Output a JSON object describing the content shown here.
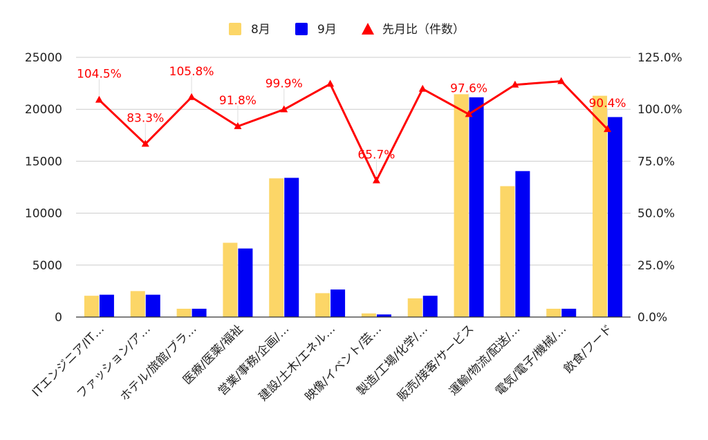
{
  "colors": {
    "aug": "#FCD667",
    "sep": "#0000F5",
    "ratio": "#FF0000",
    "grid": "#CCCCCC",
    "axis": "#333333",
    "text": "#222222"
  },
  "chart_data": {
    "type": "bar",
    "categories": [
      "ITエンジニア/IT…",
      "ファッション/ア…",
      "ホテル/旅館/ブラ…",
      "医療/医薬/福祉",
      "営業/事務/企画/…",
      "建設/土木/エネル…",
      "映像/イベント/芸…",
      "製造/工場/化学/…",
      "販売/接客/サービス",
      "運輸/物流/配送/…",
      "電気/電子/機械/…",
      "飲食/フード"
    ],
    "series": [
      {
        "name": "8月",
        "axis": "left",
        "kind": "bar",
        "color": "#FCD667",
        "values": [
          2050,
          2500,
          800,
          7150,
          13350,
          2300,
          350,
          1800,
          21450,
          12600,
          800,
          21300
        ]
      },
      {
        "name": "9月",
        "axis": "left",
        "kind": "bar",
        "color": "#0000F5",
        "values": [
          2150,
          2150,
          800,
          6600,
          13400,
          2650,
          250,
          2050,
          21150,
          14050,
          800,
          19250
        ]
      },
      {
        "name": "先月比（件数）",
        "axis": "right",
        "kind": "line",
        "marker": "triangle",
        "color": "#FF0000",
        "values": [
          104.5,
          83.3,
          105.8,
          91.8,
          99.9,
          112.2,
          65.7,
          109.8,
          97.6,
          111.8,
          113.5,
          90.4
        ]
      }
    ],
    "point_labels": [
      "104.5%",
      "83.3%",
      "105.8%",
      "91.8%",
      "99.9%",
      "",
      "65.7%",
      "",
      "97.6%",
      "",
      "",
      "90.4%"
    ],
    "y_left": {
      "min": 0,
      "max": 25000,
      "ticks": [
        "0",
        "5000",
        "10000",
        "15000",
        "20000",
        "25000"
      ]
    },
    "y_right": {
      "min": 0,
      "max": 125,
      "ticks": [
        "0.0%",
        "25.0%",
        "50.0%",
        "75.0%",
        "100.0%",
        "125.0%"
      ]
    },
    "grid": true,
    "legend_position": "top",
    "legend": [
      "8月",
      "9月",
      "先月比（件数）"
    ]
  }
}
